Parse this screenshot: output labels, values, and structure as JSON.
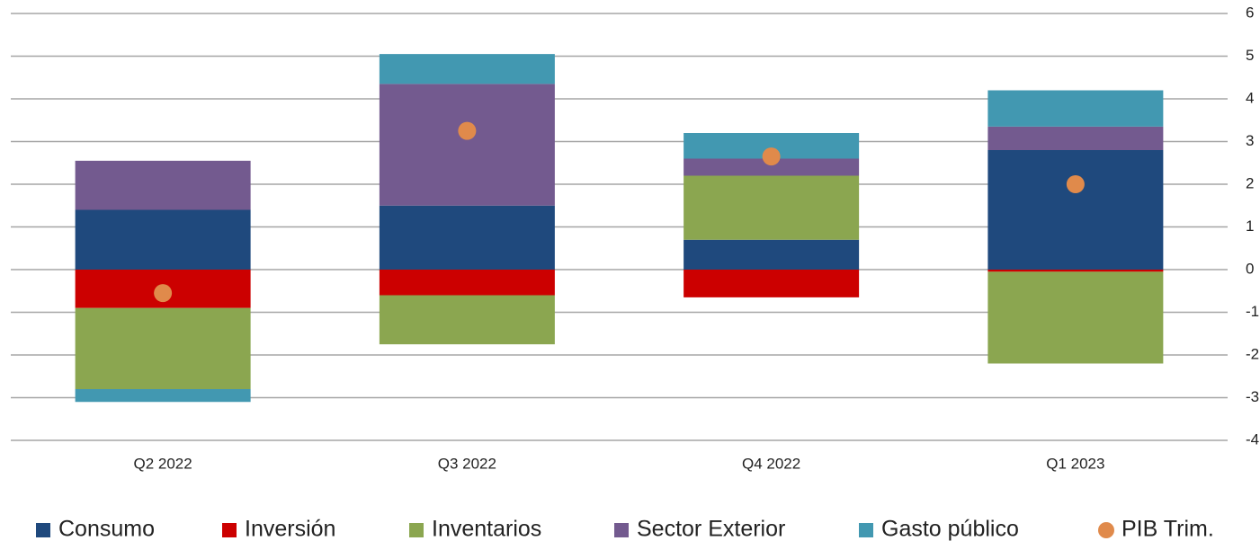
{
  "chart_data": {
    "type": "bar",
    "stacked": true,
    "categories": [
      "Q2 2022",
      "Q3 2022",
      "Q4 2022",
      "Q1 2023"
    ],
    "series": [
      {
        "name": "Consumo",
        "color": "#1f497d",
        "values": [
          1.4,
          1.5,
          0.7,
          2.8
        ]
      },
      {
        "name": "Inversión",
        "color": "#cc0000",
        "values": [
          -0.9,
          -0.6,
          -0.65,
          -0.05
        ]
      },
      {
        "name": "Inventarios",
        "color": "#8ba650",
        "values": [
          -1.9,
          -1.15,
          1.5,
          -2.15
        ]
      },
      {
        "name": "Sector Exterior",
        "color": "#735a8f",
        "values": [
          1.15,
          2.85,
          0.4,
          0.55
        ]
      },
      {
        "name": "Gasto público",
        "color": "#4298b1",
        "values": [
          -0.3,
          0.7,
          0.6,
          0.85
        ]
      },
      {
        "name": "PIB Trim.",
        "type": "scatter",
        "color": "#e08a4b",
        "values": [
          -0.55,
          3.25,
          2.65,
          2.0
        ]
      }
    ],
    "ylim": [
      -4,
      6
    ],
    "yticks": [
      -4,
      -3,
      -2,
      -1,
      0,
      1,
      2,
      3,
      4,
      5,
      6
    ],
    "grid": true,
    "legend": "bottom"
  }
}
